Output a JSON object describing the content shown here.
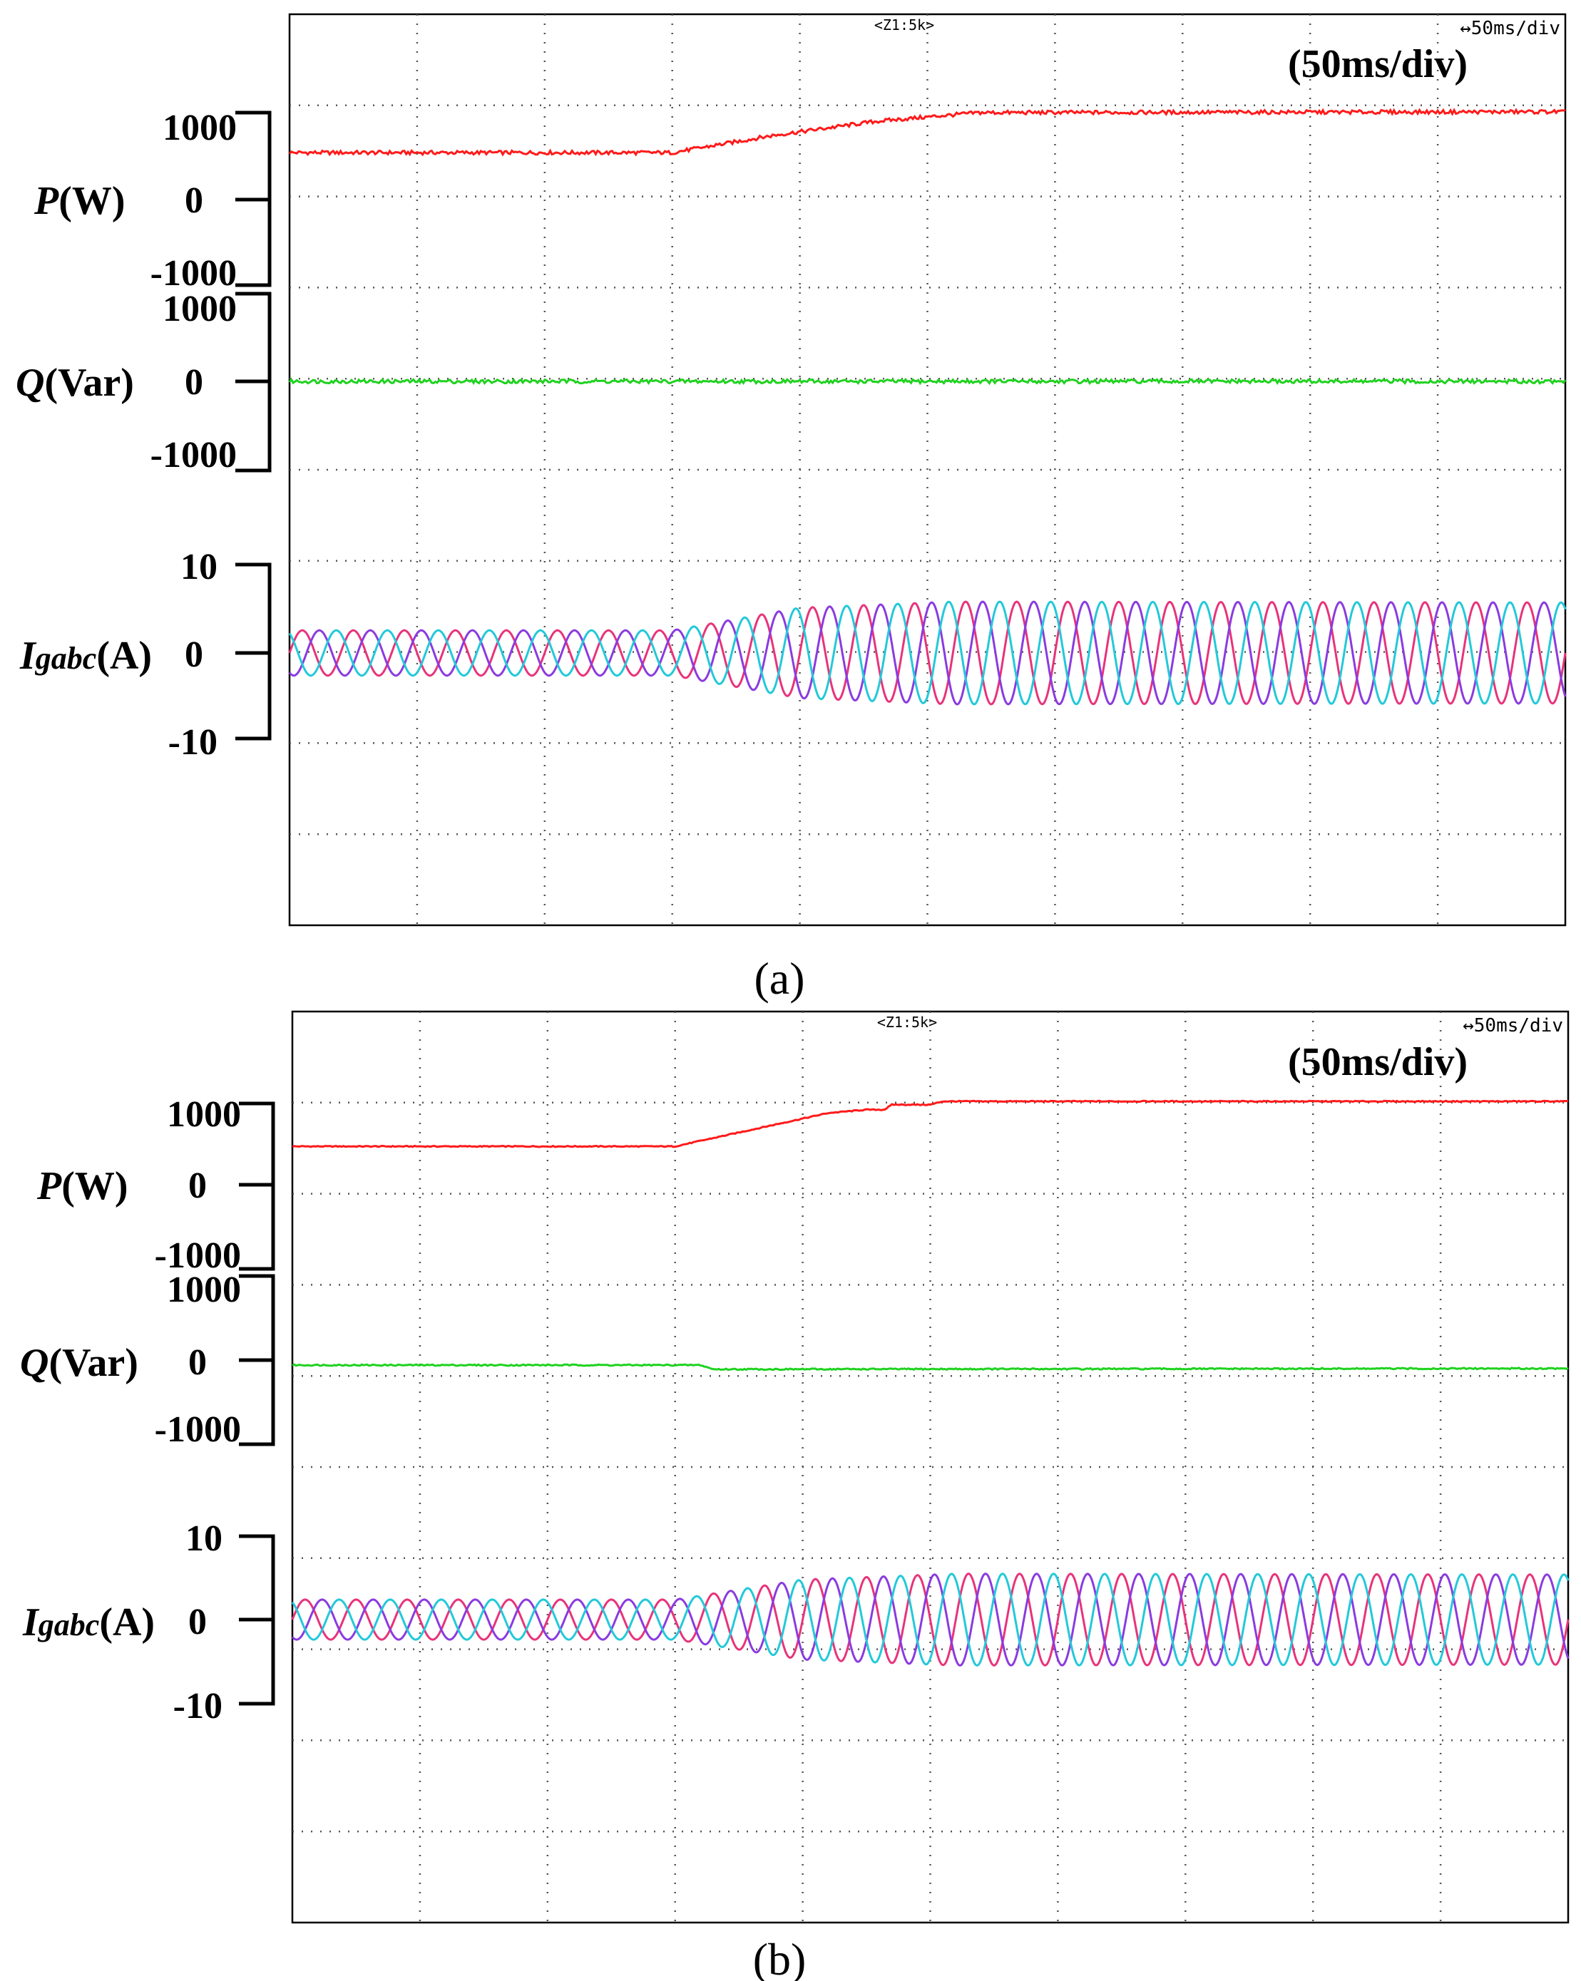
{
  "chart_data": [
    {
      "type": "line",
      "panel_label": "(a)",
      "time_div_label": "(50ms/div)",
      "scope_zoom_label": "<Z1:5k>",
      "scope_timebase_label": "↔50ms/div",
      "x": {
        "unit": "ms",
        "range": [
          0,
          500
        ],
        "divisions": 10
      },
      "colors": {
        "p": "#ff1a1a",
        "q": "#1fd21f",
        "ia": "#e8337a",
        "ib": "#8a3be0",
        "ic": "#22c9d9"
      },
      "traces": [
        {
          "name": "P",
          "label": "P",
          "unit": "(W)",
          "ticks": [
            "1000",
            "0",
            "-1000"
          ],
          "tick_values": [
            1000,
            0,
            -1000
          ],
          "points": [
            [
              0,
              540
            ],
            [
              150,
              540
            ],
            [
              190,
              740
            ],
            [
              230,
              900
            ],
            [
              270,
              1000
            ],
            [
              500,
              1010
            ]
          ],
          "ripple": 22
        },
        {
          "name": "Q",
          "label": "Q",
          "unit": "(Var)",
          "ticks": [
            "1000",
            "0",
            "-1000"
          ],
          "tick_values": [
            1000,
            0,
            -1000
          ],
          "points": [
            [
              0,
              0
            ],
            [
              500,
              0
            ]
          ],
          "ripple": 22
        },
        {
          "name": "Igabc",
          "label": "I",
          "label_sub": "gabc",
          "unit": "(A)",
          "ticks": [
            "10",
            "0",
            "-10"
          ],
          "tick_values": [
            10,
            0,
            -10
          ],
          "phases": 3,
          "frequency_hz": 50,
          "amplitude_points": [
            [
              0,
              2.6
            ],
            [
              150,
              2.6
            ],
            [
              200,
              5.2
            ],
            [
              260,
              5.9
            ],
            [
              500,
              5.8
            ]
          ]
        }
      ]
    },
    {
      "type": "line",
      "panel_label": "(b)",
      "time_div_label": "(50ms/div)",
      "scope_zoom_label": "<Z1:5k>",
      "scope_timebase_label": "↔50ms/div",
      "x": {
        "unit": "ms",
        "range": [
          0,
          500
        ],
        "divisions": 10
      },
      "colors": {
        "p": "#ff1a1a",
        "q": "#1fd21f",
        "ia": "#e8337a",
        "ib": "#8a3be0",
        "ic": "#22c9d9"
      },
      "traces": [
        {
          "name": "P",
          "label": "P",
          "unit": "(W)",
          "ticks": [
            "1000",
            "0",
            "-1000"
          ],
          "tick_values": [
            1000,
            0,
            -1000
          ],
          "points": [
            [
              0,
              460
            ],
            [
              150,
              460
            ],
            [
              165,
              560
            ],
            [
              180,
              660
            ],
            [
              195,
              760
            ],
            [
              210,
              860
            ],
            [
              225,
              900
            ],
            [
              220,
              900
            ],
            [
              232,
              900
            ],
            [
              235,
              960
            ],
            [
              250,
              960
            ],
            [
              255,
              1000
            ],
            [
              500,
              1000
            ]
          ],
          "ripple": 6
        },
        {
          "name": "Q",
          "label": "Q",
          "unit": "(Var)",
          "ticks": [
            "1000",
            "0",
            "-1000"
          ],
          "tick_values": [
            1000,
            0,
            -1000
          ],
          "points": [
            [
              0,
              -60
            ],
            [
              160,
              -60
            ],
            [
              165,
              -110
            ],
            [
              500,
              -100
            ]
          ],
          "ripple": 8
        },
        {
          "name": "Igabc",
          "label": "I",
          "label_sub": "gabc",
          "unit": "(A)",
          "ticks": [
            "10",
            "0",
            "-10"
          ],
          "tick_values": [
            10,
            0,
            -10
          ],
          "phases": 3,
          "frequency_hz": 50,
          "amplitude_points": [
            [
              0,
              2.4
            ],
            [
              150,
              2.4
            ],
            [
              200,
              4.8
            ],
            [
              260,
              5.5
            ],
            [
              500,
              5.4
            ]
          ]
        }
      ]
    }
  ]
}
